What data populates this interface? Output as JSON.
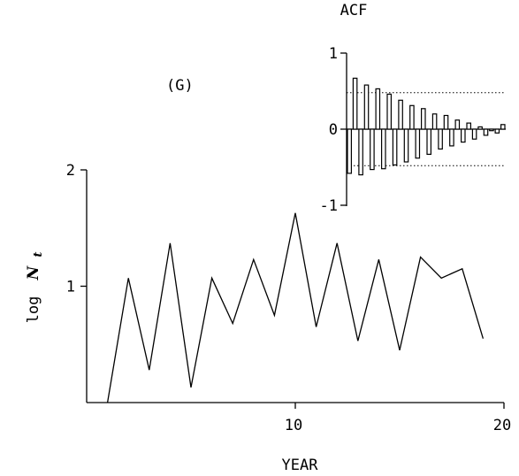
{
  "chart_data": [
    {
      "type": "line",
      "panel_label": "(G)",
      "xlabel": "YEAR",
      "ylabel_prefix": "log",
      "ylabel_var": "N",
      "ylabel_sub": "t",
      "xlim": [
        0,
        20
      ],
      "ylim": [
        0,
        2
      ],
      "x_ticks": [
        10,
        20
      ],
      "x_tick_labels": [
        "10",
        "20"
      ],
      "y_ticks": [
        1,
        2
      ],
      "y_tick_labels": [
        "1",
        "2"
      ],
      "x": [
        1,
        2,
        3,
        4,
        5,
        6,
        7,
        8,
        9,
        10,
        11,
        12,
        13,
        14,
        15,
        16,
        17,
        18,
        19
      ],
      "y": [
        0.0,
        1.07,
        0.28,
        1.37,
        0.13,
        1.07,
        0.68,
        1.23,
        0.75,
        1.63,
        0.65,
        1.37,
        0.53,
        1.23,
        0.45,
        1.25,
        1.07,
        1.15,
        0.55
      ],
      "grid": false
    },
    {
      "type": "bar",
      "title": "ACF",
      "ylim": [
        -1,
        1
      ],
      "y_ticks": [
        -1,
        0,
        1
      ],
      "y_tick_labels": [
        "-1",
        "0",
        "1"
      ],
      "lags": [
        1,
        2,
        3,
        4,
        5,
        6,
        7,
        8,
        9,
        10,
        11,
        12,
        13,
        14,
        15,
        16,
        17,
        18,
        19,
        20,
        21,
        22,
        23,
        24,
        25,
        26,
        27,
        28
      ],
      "values": [
        -0.58,
        0.67,
        -0.6,
        0.58,
        -0.53,
        0.53,
        -0.52,
        0.46,
        -0.47,
        0.38,
        -0.43,
        0.31,
        -0.38,
        0.27,
        -0.33,
        0.2,
        -0.26,
        0.18,
        -0.22,
        0.12,
        -0.17,
        0.08,
        -0.13,
        0.03,
        -0.08,
        -0.02,
        -0.05,
        0.06
      ],
      "confidence_bounds": [
        0.48,
        -0.48
      ],
      "grid": false
    }
  ]
}
